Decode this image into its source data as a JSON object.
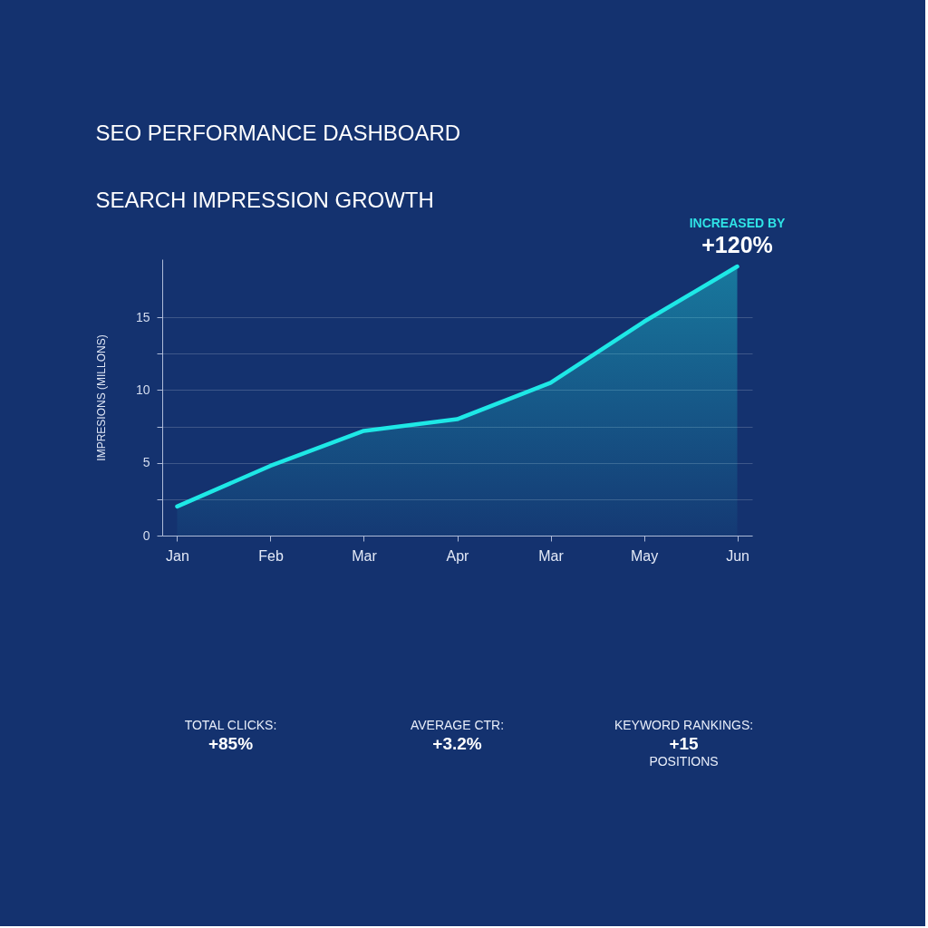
{
  "chart_data": {
    "type": "area",
    "title": "SEO PERFORMANCE DASHBOARD",
    "subtitle": "SEARCH IMPRESSION GROWTH",
    "ylabel": "IMPRESIONS (MILLONS)",
    "categories": [
      "Jan",
      "Feb",
      "Mar",
      "Apr",
      "Mar",
      "May",
      "Jun"
    ],
    "series": [
      {
        "color": "#1ee8e6",
        "values": [
          2.0,
          4.8,
          7.2,
          8.0,
          10.5,
          14.7,
          18.5
        ]
      }
    ],
    "ylim": [
      0,
      19
    ],
    "yticks": [
      0,
      {
        "value": 2.5,
        "label": null
      },
      5,
      {
        "value": 7.5,
        "label": null
      },
      10,
      {
        "value": 12.5,
        "label": null
      },
      15
    ],
    "grid": "y",
    "annotations": [
      "INCREASED BY",
      {
        "text": "+120%",
        "x": "Jun",
        "y": 18.5
      },
      "TOTAL CLICKS:\n+85%",
      "AVERAGE CTR:\n+3.2%",
      "KEYWORD RANKINGS:\n+15\nPOSITIONS"
    ]
  }
}
